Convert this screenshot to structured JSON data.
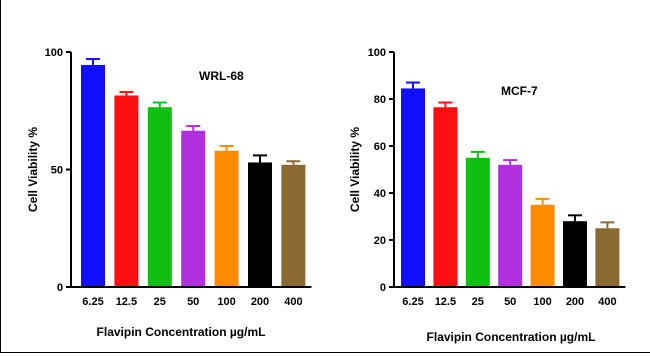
{
  "chart_data": [
    {
      "type": "bar",
      "title": "WRL-68",
      "xlabel": "Flavipin Concentration µg/mL",
      "ylabel": "Cell Viability %",
      "categories": [
        "6.25",
        "12.5",
        "25",
        "50",
        "100",
        "200",
        "400"
      ],
      "values": [
        94.5,
        81.5,
        76.5,
        66.5,
        58,
        53,
        52
      ],
      "errors": [
        2.5,
        1.5,
        2,
        2,
        2,
        3,
        1.5
      ],
      "ylim": [
        0,
        100
      ],
      "yticks": [
        "0",
        "50",
        "100"
      ],
      "colors": [
        "#1010ff",
        "#ff1010",
        "#10c010",
        "#b030e0",
        "#ff8c00",
        "#000000",
        "#8b6a30"
      ],
      "grid": false,
      "legend": "none"
    },
    {
      "type": "bar",
      "title": "MCF-7",
      "xlabel": "Flavipin Concentration µg/mL",
      "ylabel": "Cell Viability %",
      "categories": [
        "6.25",
        "12.5",
        "25",
        "50",
        "100",
        "200",
        "400"
      ],
      "values": [
        84.5,
        76.5,
        55,
        52,
        35,
        28,
        25
      ],
      "errors": [
        2.5,
        2,
        2.5,
        2,
        2.5,
        2.5,
        2.5
      ],
      "ylim": [
        0,
        100
      ],
      "yticks": [
        "0",
        "20",
        "40",
        "60",
        "80",
        "100"
      ],
      "colors": [
        "#1010ff",
        "#ff1010",
        "#10c010",
        "#b030e0",
        "#ff8c00",
        "#000000",
        "#8b6a30"
      ],
      "grid": false,
      "legend": "none"
    }
  ]
}
